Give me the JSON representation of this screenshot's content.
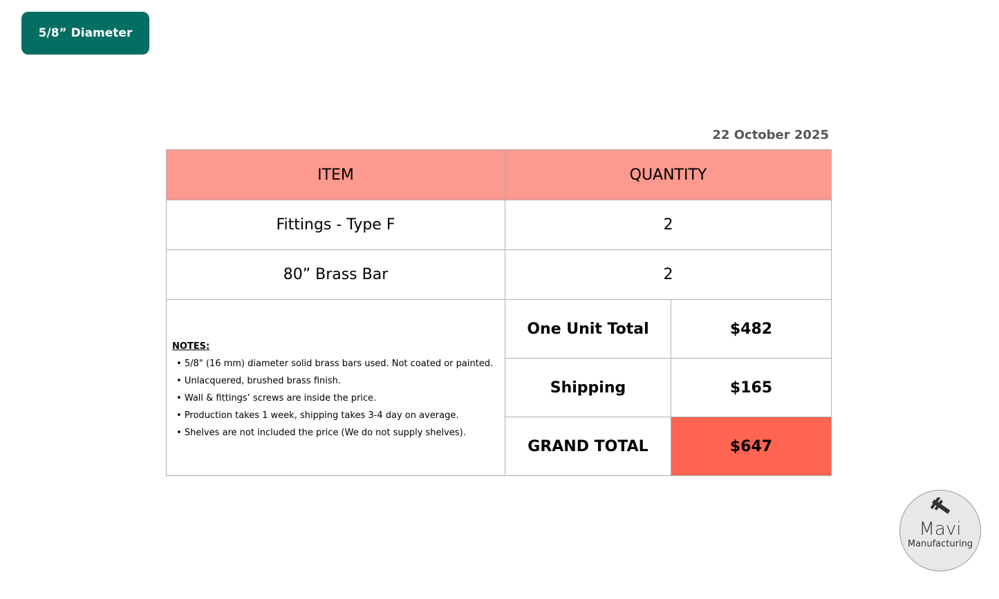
{
  "badge": "5/8” Diameter",
  "date": "22 October 2025",
  "table": {
    "headers": [
      "ITEM",
      "QUANTITY"
    ],
    "rows": [
      {
        "item": "Fittings - Type F",
        "quantity": "2"
      },
      {
        "item": "80” Brass Bar",
        "quantity": "2"
      }
    ],
    "summary": [
      {
        "label": "One Unit Total",
        "value": "$482"
      },
      {
        "label": "Shipping",
        "value": "$165"
      },
      {
        "label": "GRAND TOTAL",
        "value": "$647"
      }
    ]
  },
  "notes": {
    "title": "NOTES:",
    "items": [
      "5/8\" (16 mm) diameter solid brass bars used. Not coated or painted.",
      "Unlacquered, brushed brass finish.",
      "Wall & fittings’ screws are inside the price.",
      "Production takes 1 week, shipping takes 3-4 day on average.",
      "Shelves are not included the price (We do not supply shelves)."
    ]
  },
  "logo": {
    "name": "Mavi",
    "sub": "Manufacturing",
    "icon": "caliper-icon"
  },
  "colors": {
    "badge": "#036e64",
    "header": "#fd998e",
    "grand_total": "#ff6550"
  }
}
